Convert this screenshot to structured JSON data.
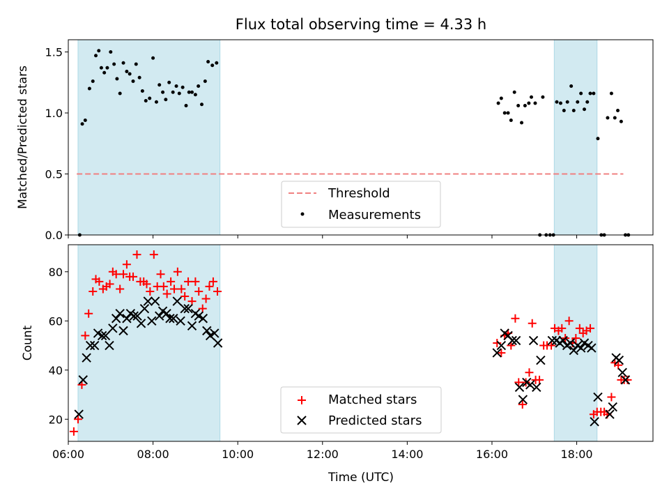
{
  "chart_data": [
    {
      "type": "scatter",
      "title": "Flux total observing time = 4.33 h",
      "ylabel": "Matched/Predicted stars",
      "xlabel": "",
      "xlim": [
        6.0,
        19.8
      ],
      "ylim": [
        0,
        1.6
      ],
      "yticks": [
        0.0,
        0.5,
        1.0,
        1.5
      ],
      "yticklabels": [
        "0.0",
        "0.5",
        "1.0",
        "1.5"
      ],
      "xticks": [
        6,
        8,
        10,
        12,
        14,
        16,
        18
      ],
      "shaded_ranges": [
        [
          6.23,
          9.58
        ],
        [
          17.47,
          18.48
        ]
      ],
      "threshold": {
        "name": "Threshold",
        "value": 0.5,
        "x_range": [
          6.2,
          19.1
        ],
        "color": "#f08080"
      },
      "legend": {
        "placement": "bottom-center",
        "entries": [
          "Threshold",
          "Measurements"
        ]
      },
      "series": [
        {
          "name": "Measurements",
          "color": "#000000",
          "points": [
            [
              6.27,
              0.0
            ],
            [
              6.33,
              0.91
            ],
            [
              6.4,
              0.94
            ],
            [
              6.5,
              1.2
            ],
            [
              6.58,
              1.26
            ],
            [
              6.65,
              1.47
            ],
            [
              6.72,
              1.51
            ],
            [
              6.78,
              1.37
            ],
            [
              6.85,
              1.33
            ],
            [
              6.92,
              1.37
            ],
            [
              7.0,
              1.5
            ],
            [
              7.08,
              1.4
            ],
            [
              7.15,
              1.28
            ],
            [
              7.22,
              1.16
            ],
            [
              7.3,
              1.41
            ],
            [
              7.38,
              1.34
            ],
            [
              7.45,
              1.32
            ],
            [
              7.53,
              1.26
            ],
            [
              7.6,
              1.4
            ],
            [
              7.68,
              1.29
            ],
            [
              7.75,
              1.18
            ],
            [
              7.83,
              1.1
            ],
            [
              7.92,
              1.12
            ],
            [
              8.0,
              1.45
            ],
            [
              8.08,
              1.09
            ],
            [
              8.15,
              1.23
            ],
            [
              8.23,
              1.17
            ],
            [
              8.3,
              1.11
            ],
            [
              8.38,
              1.25
            ],
            [
              8.47,
              1.17
            ],
            [
              8.55,
              1.22
            ],
            [
              8.62,
              1.16
            ],
            [
              8.7,
              1.21
            ],
            [
              8.78,
              1.06
            ],
            [
              8.85,
              1.17
            ],
            [
              8.92,
              1.17
            ],
            [
              9.0,
              1.15
            ],
            [
              9.07,
              1.22
            ],
            [
              9.15,
              1.07
            ],
            [
              9.23,
              1.26
            ],
            [
              9.3,
              1.42
            ],
            [
              9.4,
              1.39
            ],
            [
              9.5,
              1.41
            ],
            [
              16.15,
              1.08
            ],
            [
              16.22,
              1.12
            ],
            [
              16.3,
              1.0
            ],
            [
              16.38,
              1.0
            ],
            [
              16.45,
              0.94
            ],
            [
              16.53,
              1.17
            ],
            [
              16.62,
              1.06
            ],
            [
              16.7,
              0.92
            ],
            [
              16.78,
              1.06
            ],
            [
              16.87,
              1.08
            ],
            [
              16.93,
              1.13
            ],
            [
              17.02,
              1.08
            ],
            [
              17.13,
              0.0
            ],
            [
              17.2,
              1.13
            ],
            [
              17.28,
              0.0
            ],
            [
              17.37,
              0.0
            ],
            [
              17.45,
              0.0
            ],
            [
              17.53,
              1.09
            ],
            [
              17.62,
              1.08
            ],
            [
              17.7,
              1.02
            ],
            [
              17.78,
              1.09
            ],
            [
              17.87,
              1.22
            ],
            [
              17.93,
              1.02
            ],
            [
              18.02,
              1.09
            ],
            [
              18.1,
              1.16
            ],
            [
              18.18,
              1.03
            ],
            [
              18.25,
              1.09
            ],
            [
              18.32,
              1.16
            ],
            [
              18.4,
              1.16
            ],
            [
              18.5,
              0.79
            ],
            [
              18.58,
              0.0
            ],
            [
              18.65,
              0.0
            ],
            [
              18.73,
              0.96
            ],
            [
              18.82,
              1.16
            ],
            [
              18.9,
              0.96
            ],
            [
              18.97,
              1.02
            ],
            [
              19.05,
              0.93
            ],
            [
              19.15,
              0.0
            ],
            [
              19.22,
              0.0
            ]
          ]
        }
      ]
    },
    {
      "type": "scatter",
      "title": "",
      "ylabel": "Count",
      "xlabel": "Time (UTC)",
      "xlim": [
        6.0,
        19.8
      ],
      "ylim": [
        11,
        91
      ],
      "yticks": [
        20,
        40,
        60,
        80
      ],
      "xticks": [
        6,
        8,
        10,
        12,
        14,
        16,
        18
      ],
      "xticklabels": [
        "06:00",
        "08:00",
        "10:00",
        "12:00",
        "14:00",
        "16:00",
        "18:00"
      ],
      "shaded_ranges": [
        [
          6.23,
          9.58
        ],
        [
          17.47,
          18.48
        ]
      ],
      "legend": {
        "placement": "bottom-center",
        "entries": [
          "Matched stars",
          "Predicted stars"
        ]
      },
      "series": [
        {
          "name": "Matched stars",
          "marker": "+",
          "color": "#ff0000",
          "points": [
            [
              6.13,
              15
            ],
            [
              6.23,
              20
            ],
            [
              6.32,
              34
            ],
            [
              6.4,
              54
            ],
            [
              6.48,
              63
            ],
            [
              6.58,
              72
            ],
            [
              6.65,
              77
            ],
            [
              6.73,
              76
            ],
            [
              6.82,
              73
            ],
            [
              6.9,
              74
            ],
            [
              6.98,
              75
            ],
            [
              7.05,
              80
            ],
            [
              7.13,
              79
            ],
            [
              7.22,
              73
            ],
            [
              7.3,
              79
            ],
            [
              7.38,
              83
            ],
            [
              7.45,
              78
            ],
            [
              7.53,
              78
            ],
            [
              7.62,
              87
            ],
            [
              7.7,
              76
            ],
            [
              7.78,
              76
            ],
            [
              7.85,
              75
            ],
            [
              7.93,
              72
            ],
            [
              8.02,
              87
            ],
            [
              8.1,
              74
            ],
            [
              8.18,
              79
            ],
            [
              8.25,
              74
            ],
            [
              8.33,
              71
            ],
            [
              8.42,
              76
            ],
            [
              8.5,
              73
            ],
            [
              8.58,
              80
            ],
            [
              8.67,
              73
            ],
            [
              8.75,
              70
            ],
            [
              8.83,
              76
            ],
            [
              8.92,
              68
            ],
            [
              9.0,
              76
            ],
            [
              9.08,
              72
            ],
            [
              9.17,
              65
            ],
            [
              9.25,
              69
            ],
            [
              9.33,
              74
            ],
            [
              9.42,
              76
            ],
            [
              9.52,
              72
            ],
            [
              16.12,
              51
            ],
            [
              16.22,
              47
            ],
            [
              16.3,
              54
            ],
            [
              16.38,
              55
            ],
            [
              16.45,
              50
            ],
            [
              16.55,
              61
            ],
            [
              16.63,
              35
            ],
            [
              16.72,
              26
            ],
            [
              16.8,
              35
            ],
            [
              16.88,
              39
            ],
            [
              16.95,
              59
            ],
            [
              17.03,
              36
            ],
            [
              17.12,
              36
            ],
            [
              17.22,
              50
            ],
            [
              17.3,
              50
            ],
            [
              17.4,
              50
            ],
            [
              17.48,
              57
            ],
            [
              17.57,
              56
            ],
            [
              17.65,
              57
            ],
            [
              17.73,
              53
            ],
            [
              17.82,
              60
            ],
            [
              17.9,
              51
            ],
            [
              17.98,
              53
            ],
            [
              18.07,
              57
            ],
            [
              18.15,
              55
            ],
            [
              18.23,
              56
            ],
            [
              18.32,
              57
            ],
            [
              18.4,
              22
            ],
            [
              18.48,
              23
            ],
            [
              18.57,
              23
            ],
            [
              18.65,
              23
            ],
            [
              18.72,
              22
            ],
            [
              18.82,
              29
            ],
            [
              18.9,
              43
            ],
            [
              18.98,
              42
            ],
            [
              19.05,
              36
            ],
            [
              19.12,
              36
            ],
            [
              19.2,
              36
            ]
          ]
        },
        {
          "name": "Predicted stars",
          "marker": "x",
          "color": "#000000",
          "points": [
            [
              6.25,
              22
            ],
            [
              6.35,
              36
            ],
            [
              6.43,
              45
            ],
            [
              6.52,
              50
            ],
            [
              6.62,
              50
            ],
            [
              6.7,
              55
            ],
            [
              6.8,
              54
            ],
            [
              6.88,
              54
            ],
            [
              6.97,
              50
            ],
            [
              7.05,
              57
            ],
            [
              7.13,
              61
            ],
            [
              7.22,
              63
            ],
            [
              7.3,
              56
            ],
            [
              7.38,
              61
            ],
            [
              7.47,
              63
            ],
            [
              7.55,
              62
            ],
            [
              7.63,
              62
            ],
            [
              7.72,
              59
            ],
            [
              7.8,
              65
            ],
            [
              7.88,
              68
            ],
            [
              7.97,
              60
            ],
            [
              8.05,
              68
            ],
            [
              8.15,
              62
            ],
            [
              8.23,
              64
            ],
            [
              8.32,
              63
            ],
            [
              8.4,
              61
            ],
            [
              8.48,
              61
            ],
            [
              8.57,
              68
            ],
            [
              8.65,
              60
            ],
            [
              8.75,
              65
            ],
            [
              8.83,
              65
            ],
            [
              8.92,
              58
            ],
            [
              9.0,
              63
            ],
            [
              9.08,
              62
            ],
            [
              9.18,
              61
            ],
            [
              9.27,
              56
            ],
            [
              9.35,
              54
            ],
            [
              9.45,
              55
            ],
            [
              9.53,
              51
            ],
            [
              16.12,
              47
            ],
            [
              16.22,
              50
            ],
            [
              16.3,
              55
            ],
            [
              16.38,
              54
            ],
            [
              16.48,
              52
            ],
            [
              16.57,
              52
            ],
            [
              16.65,
              33
            ],
            [
              16.73,
              28
            ],
            [
              16.82,
              35
            ],
            [
              16.9,
              34
            ],
            [
              16.98,
              52
            ],
            [
              17.05,
              33
            ],
            [
              17.15,
              44
            ],
            [
              17.42,
              52
            ],
            [
              17.52,
              52
            ],
            [
              17.6,
              51
            ],
            [
              17.68,
              52
            ],
            [
              17.77,
              50
            ],
            [
              17.85,
              51
            ],
            [
              17.93,
              48
            ],
            [
              18.02,
              50
            ],
            [
              18.1,
              49
            ],
            [
              18.18,
              51
            ],
            [
              18.27,
              50
            ],
            [
              18.35,
              49
            ],
            [
              18.42,
              19
            ],
            [
              18.5,
              29
            ],
            [
              18.78,
              22
            ],
            [
              18.85,
              25
            ],
            [
              18.93,
              45
            ],
            [
              19.0,
              44
            ],
            [
              19.08,
              39
            ],
            [
              19.15,
              36
            ]
          ]
        }
      ]
    }
  ]
}
